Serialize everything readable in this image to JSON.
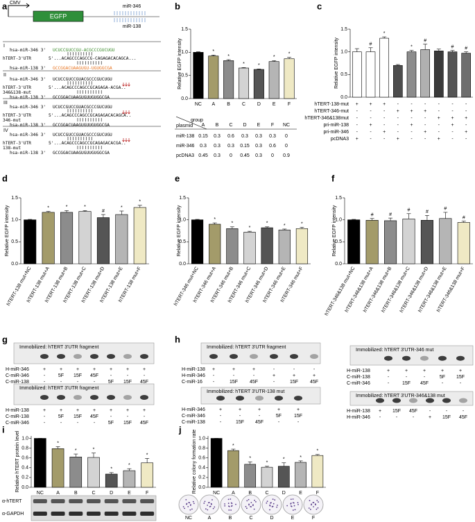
{
  "panel_a": {
    "letter": "a",
    "construct": {
      "promoter": "CMV",
      "gene": "EGFP",
      "sites": [
        "miR-346",
        "miR-138"
      ]
    },
    "alignments": [
      {
        "numeral": "I",
        "lines": [
          {
            "label": "hsa-miR-346 3'",
            "seq": "UCUCCGUCCGU-ACGCCCGUCUGU",
            "color": "#3c8c2c"
          },
          {
            "label": "hTERT-3'UTR",
            "seq": "5'...ACAGCCCAGCCG-CAGAGACACAGCA..."
          },
          {
            "label": "hsa-miR-138 3'",
            "seq": "GCCGGACUAAGUGU-UGUGGCGA",
            "color": "#e8731e"
          }
        ]
      },
      {
        "numeral": "II",
        "lines": [
          {
            "label": "hsa-miR-346 3'",
            "seq": "UCUCCGUCCGUACGCCCGUCUGU"
          },
          {
            "label": "hTERT-3'UTR",
            "sublabel": "346&138-mut",
            "seq": "5'...ACAGCCCAGCCGCAGAGA-ACGA.."
          },
          {
            "label": "hsa-miR-138 3'",
            "seq": "GCCGGACUAAGUGUUGUGGCGA"
          }
        ]
      },
      {
        "numeral": "III",
        "lines": [
          {
            "label": "hsa-miR-346 3'",
            "seq": "UCUCCGUCCGUACGCCCGUCUGU"
          },
          {
            "label": "hTERT-3'UTR",
            "sublabel": "346-mut",
            "seq": "5'...ACAGCCCAGCCGCAGAGACACAGCA.."
          },
          {
            "label": "hsa-miR-138 3'",
            "seq": "GCCGGACUAAGUGUUGUGGCGA"
          }
        ]
      },
      {
        "numeral": "IV",
        "lines": [
          {
            "label": "hsa-miR-346 3'",
            "seq": "UCUCCGUCCGUACGCCCGUCUGU"
          },
          {
            "label": "hTERT-3'UTR",
            "sublabel": "138-mut",
            "seq": "5'...ACAGCCCAGCCGCAGAGACACGA.."
          },
          {
            "label": "hsa-miR-138 3'",
            "seq": "GCCGGACUAAGUGUUGUGGCGA"
          }
        ]
      }
    ]
  },
  "chart_data": [
    {
      "type": "bar",
      "panel": "b",
      "y_label": "Relative EGFP intensity",
      "categories": [
        "NC",
        "A",
        "B",
        "C",
        "D",
        "E",
        "F"
      ],
      "values": [
        1.0,
        0.92,
        0.82,
        0.66,
        0.63,
        0.8,
        0.86
      ],
      "errors": [
        0.01,
        0.02,
        0.02,
        0.01,
        0.01,
        0.02,
        0.03
      ],
      "significance": [
        null,
        "*",
        "*",
        "*",
        "*",
        "*",
        "*"
      ],
      "colors": [
        "#000000",
        "#a39b6a",
        "#8c8c8c",
        "#d3d3d3",
        "#555555",
        "#b5b5b5",
        "#efe9c4"
      ],
      "ylim": [
        0,
        1.5
      ],
      "yticks": [
        {
          "value": 0,
          "label": "0.0"
        },
        {
          "value": 0.5,
          "label": "0.5"
        },
        {
          "value": 1,
          "label": "1.0"
        },
        {
          "value": 1.5,
          "label": "1.5"
        }
      ],
      "table": {
        "corner_top": "group",
        "corner_bottom": "plasmid",
        "columns": [
          "A",
          "B",
          "C",
          "D",
          "E",
          "F",
          "NC"
        ],
        "rows": [
          {
            "name": "miR-138",
            "values": [
              0.15,
              0.3,
              0.6,
              0.3,
              0.3,
              0.3,
              0
            ]
          },
          {
            "name": "miR-346",
            "values": [
              0.3,
              0.3,
              0.3,
              0.15,
              0.3,
              0.6,
              0
            ]
          },
          {
            "name": "pcDNA3",
            "values": [
              0.45,
              0.3,
              0,
              0.45,
              0.3,
              0,
              0.9
            ]
          }
        ]
      }
    },
    {
      "type": "bar",
      "panel": "c",
      "y_label": "Relative EGFP intensity",
      "values": [
        1.0,
        1.0,
        1.3,
        0.7,
        1.0,
        1.05,
        1.02,
        1.0,
        0.97
      ],
      "errors": [
        0.07,
        0.09,
        0.03,
        0.02,
        0.03,
        0.12,
        0.04,
        0.03,
        0.03
      ],
      "significance": [
        null,
        "#",
        "*",
        null,
        "*",
        "#",
        null,
        "#",
        "#"
      ],
      "colors": [
        "#ffffff",
        "#ffffff",
        "#ffffff",
        "#4d4d4d",
        "#8c8c8c",
        "#b0b0b0",
        "#3a3a3a",
        "#555555",
        "#6e6e6e"
      ],
      "ylim": [
        0,
        1.5
      ],
      "yticks": [
        {
          "value": 0,
          "label": "0.0"
        },
        {
          "value": 0.5,
          "label": "0.5"
        },
        {
          "value": 1,
          "label": "1.0"
        },
        {
          "value": 1.5,
          "label": "1.5"
        }
      ],
      "conditions": [
        {
          "name": "hTERT-138-mut",
          "marks": [
            "+",
            "+",
            "+",
            "-",
            "-",
            "-",
            "-",
            "-",
            "-"
          ]
        },
        {
          "name": "hTERT-346-mut",
          "marks": [
            "-",
            "-",
            "-",
            "+",
            "+",
            "+",
            "-",
            "-",
            "-"
          ]
        },
        {
          "name": "hTERT-346&138mut",
          "marks": [
            "-",
            "-",
            "-",
            "-",
            "-",
            "-",
            "+",
            "+",
            "+"
          ]
        },
        {
          "name": "pri-miR-138",
          "marks": [
            "-",
            "+",
            "-",
            "-",
            "+",
            "-",
            "-",
            "+",
            "-"
          ]
        },
        {
          "name": "pri-miR-346",
          "marks": [
            "-",
            "-",
            "+",
            "-",
            "-",
            "+",
            "-",
            "-",
            "+"
          ]
        },
        {
          "name": "pcDNA3",
          "marks": [
            "+",
            "-",
            "-",
            "+",
            "-",
            "-",
            "+",
            "-",
            "-"
          ]
        }
      ]
    },
    {
      "type": "bar",
      "panel": "d",
      "y_label": "Relative EGFP intensity",
      "categories": [
        "hTERT-138 mut+NC",
        "hTERT-138 mut+A",
        "hTERT-138 mut+B",
        "hTERT-138 mut+C",
        "hTERT-138 mut+D",
        "hTERT-138 mut+E",
        "hTERT-138 mut+F"
      ],
      "values": [
        1.0,
        1.17,
        1.17,
        1.19,
        1.05,
        1.12,
        1.28
      ],
      "errors": [
        0.01,
        0.02,
        0.04,
        0.02,
        0.07,
        0.08,
        0.05
      ],
      "significance": [
        null,
        "*",
        "*",
        "*",
        "#",
        "*",
        "*"
      ],
      "colors": [
        "#000000",
        "#a39b6a",
        "#8c8c8c",
        "#d3d3d3",
        "#555555",
        "#b5b5b5",
        "#efe9c4"
      ],
      "ylim": [
        0,
        1.5
      ],
      "yticks": [
        {
          "value": 0,
          "label": "0.0"
        },
        {
          "value": 0.5,
          "label": "0.5"
        },
        {
          "value": 1,
          "label": "1.0"
        },
        {
          "value": 1.5,
          "label": "1.5"
        }
      ]
    },
    {
      "type": "bar",
      "panel": "e",
      "y_label": "Relative EGFP intensity",
      "categories": [
        "hTERT-346 mut+NC",
        "hTERT-346 mut+A",
        "hTERT-346 mut+B",
        "hTERT-346 mut+C",
        "hTERT-346 mut+D",
        "hTERT-346 mut+E",
        "hTERT-346 mut+F"
      ],
      "values": [
        1.0,
        0.9,
        0.8,
        0.72,
        0.82,
        0.77,
        0.8
      ],
      "errors": [
        0.01,
        0.03,
        0.04,
        0.02,
        0.02,
        0.02,
        0.03
      ],
      "significance": [
        null,
        "*",
        "*",
        "*",
        "*",
        "*",
        "*"
      ],
      "colors": [
        "#000000",
        "#a39b6a",
        "#8c8c8c",
        "#d3d3d3",
        "#555555",
        "#b5b5b5",
        "#efe9c4"
      ],
      "ylim": [
        0,
        1.5
      ],
      "yticks": [
        {
          "value": 0,
          "label": "0.0"
        },
        {
          "value": 0.5,
          "label": "0.5"
        },
        {
          "value": 1,
          "label": "1.0"
        },
        {
          "value": 1.5,
          "label": "1.5"
        }
      ]
    },
    {
      "type": "bar",
      "panel": "f",
      "y_label": "Relative EGFP intensity",
      "categories": [
        "hTERT-346&138 mut+NC",
        "hTERT-346&138 mut+A",
        "hTERT-346&138 mut+B",
        "hTERT-346&138 mut+C",
        "hTERT-346&138 mut+D",
        "hTERT-346&138 mut+E",
        "hTERT-346&138 mut+F"
      ],
      "values": [
        1.0,
        0.99,
        0.98,
        1.02,
        0.99,
        1.03,
        0.94
      ],
      "errors": [
        0.01,
        0.04,
        0.06,
        0.12,
        0.11,
        0.14,
        0.03
      ],
      "significance": [
        null,
        "#",
        "#",
        "#",
        "#",
        "#",
        "#"
      ],
      "colors": [
        "#000000",
        "#a39b6a",
        "#8c8c8c",
        "#d3d3d3",
        "#555555",
        "#b5b5b5",
        "#efe9c4"
      ],
      "ylim": [
        0,
        1.5
      ],
      "yticks": [
        {
          "value": 0,
          "label": "0.0"
        },
        {
          "value": 0.5,
          "label": "0.5"
        },
        {
          "value": 1,
          "label": "1.0"
        },
        {
          "value": 1.5,
          "label": "1.5"
        }
      ]
    },
    {
      "type": "bar",
      "panel": "i",
      "y_label": "Relative hTERT protein level",
      "categories": [
        "NC",
        "A",
        "B",
        "C",
        "D",
        "E",
        "F"
      ],
      "values": [
        1.0,
        0.79,
        0.62,
        0.61,
        0.27,
        0.34,
        0.5
      ],
      "errors": [
        0.0,
        0.04,
        0.06,
        0.09,
        0.03,
        0.04,
        0.09
      ],
      "significance": [
        null,
        "*",
        "*",
        "*",
        "*",
        "*",
        "*"
      ],
      "colors": [
        "#000000",
        "#a39b6a",
        "#8c8c8c",
        "#d3d3d3",
        "#555555",
        "#b5b5b5",
        "#efe9c4"
      ],
      "ylim": [
        0,
        1.05
      ],
      "yticks": [
        {
          "value": 0,
          "label": "0.0"
        },
        {
          "value": 0.2,
          "label": "0.2"
        },
        {
          "value": 0.4,
          "label": "0.4"
        },
        {
          "value": 0.6,
          "label": "0.6"
        },
        {
          "value": 0.8,
          "label": "0.8"
        },
        {
          "value": 1,
          "label": "1.0"
        }
      ]
    },
    {
      "type": "bar",
      "panel": "j",
      "y_label": "Relative colony formation rate",
      "categories": [
        "NC",
        "A",
        "B",
        "C",
        "D",
        "E",
        "F"
      ],
      "values": [
        1.0,
        0.75,
        0.47,
        0.41,
        0.43,
        0.51,
        0.65
      ],
      "errors": [
        0.0,
        0.03,
        0.05,
        0.02,
        0.07,
        0.03,
        0.02
      ],
      "significance": [
        null,
        "*",
        "*",
        "*",
        "*",
        "*",
        "*"
      ],
      "colors": [
        "#000000",
        "#a39b6a",
        "#8c8c8c",
        "#d3d3d3",
        "#555555",
        "#b5b5b5",
        "#efe9c4"
      ],
      "ylim": [
        0,
        1.05
      ],
      "yticks": [
        {
          "value": 0,
          "label": "0.0"
        },
        {
          "value": 0.2,
          "label": "0.2"
        },
        {
          "value": 0.4,
          "label": "0.4"
        },
        {
          "value": 0.6,
          "label": "0.6"
        },
        {
          "value": 0.8,
          "label": "0.8"
        },
        {
          "value": 1,
          "label": "1.0"
        }
      ]
    }
  ],
  "panel_g": {
    "letter": "g",
    "blocks": [
      {
        "title": "Immobilized: hTERT 3'UTR fragment",
        "rows": [
          {
            "name": "H-miR-346",
            "cells": [
              "+",
              "+",
              "+",
              "+",
              "+",
              "+",
              "+"
            ]
          },
          {
            "name": "C-miR-346",
            "cells": [
              "-",
              "5F",
              "15F",
              "45F",
              "-",
              "-",
              "-"
            ]
          },
          {
            "name": "C-miR-138",
            "cells": [
              "-",
              "-",
              "-",
              "-",
              "5F",
              "15F",
              "45F"
            ]
          }
        ]
      },
      {
        "title": "Immobilized: hTERT 3'UTR fragment",
        "rows": [
          {
            "name": "H-miR-138",
            "cells": [
              "+",
              "+",
              "+",
              "+",
              "+",
              "+",
              "+"
            ]
          },
          {
            "name": "C-miR-138",
            "cells": [
              "-",
              "5F",
              "15F",
              "45F",
              "-",
              "-",
              "-"
            ]
          },
          {
            "name": "C-miR-346",
            "cells": [
              "-",
              "-",
              "-",
              "-",
              "5F",
              "15F",
              "45F"
            ]
          }
        ]
      }
    ]
  },
  "panel_h": {
    "letter": "h",
    "blocks": [
      {
        "title": "Immobilized: hTERT 3'UTR fragment",
        "rows": [
          {
            "name": "H-miR-138",
            "cells": [
              "+",
              "+",
              "+",
              "-",
              "-",
              "-"
            ]
          },
          {
            "name": "H-miR-346",
            "cells": [
              "-",
              "-",
              "-",
              "+",
              "+",
              "+"
            ]
          },
          {
            "name": "C-miR-16",
            "cells": [
              "-",
              "15F",
              "45F",
              "-",
              "15F",
              "45F"
            ]
          }
        ]
      },
      {
        "title": "Immobilized: hTERT 3'UTR-346 mut",
        "rows": [
          {
            "name": "H-miR-138",
            "cells": [
              "+",
              "+",
              "+",
              "+",
              "+"
            ]
          },
          {
            "name": "C-miR-138",
            "cells": [
              "-",
              "-",
              "-",
              "5F",
              "15F"
            ]
          },
          {
            "name": "C-miR-346",
            "cells": [
              "-",
              "15F",
              "45F",
              "-",
              "-"
            ]
          }
        ]
      },
      {
        "title": "Immobilized: hTERT 3'UTR-138 mut",
        "rows": [
          {
            "name": "H-miR-346",
            "cells": [
              "+",
              "+",
              "+",
              "+",
              "+"
            ]
          },
          {
            "name": "C-miR-346",
            "cells": [
              "-",
              "-",
              "-",
              "5F",
              "15F"
            ]
          },
          {
            "name": "C-miR-138",
            "cells": [
              "-",
              "15F",
              "45F",
              "-",
              "-"
            ]
          }
        ]
      },
      {
        "title": "Immobilized: hTERT 3'UTR-346&138 mut",
        "rows": [
          {
            "name": "H-miR-138",
            "cells": [
              "+",
              "15F",
              "45F",
              "-",
              "-",
              "-"
            ]
          },
          {
            "name": "H-miR-346",
            "cells": [
              "-",
              "-",
              "-",
              "+",
              "15F",
              "45F"
            ]
          }
        ]
      }
    ]
  },
  "panel_i_blot": {
    "rows": [
      "α-hTERT",
      "α-GAPDH"
    ]
  }
}
